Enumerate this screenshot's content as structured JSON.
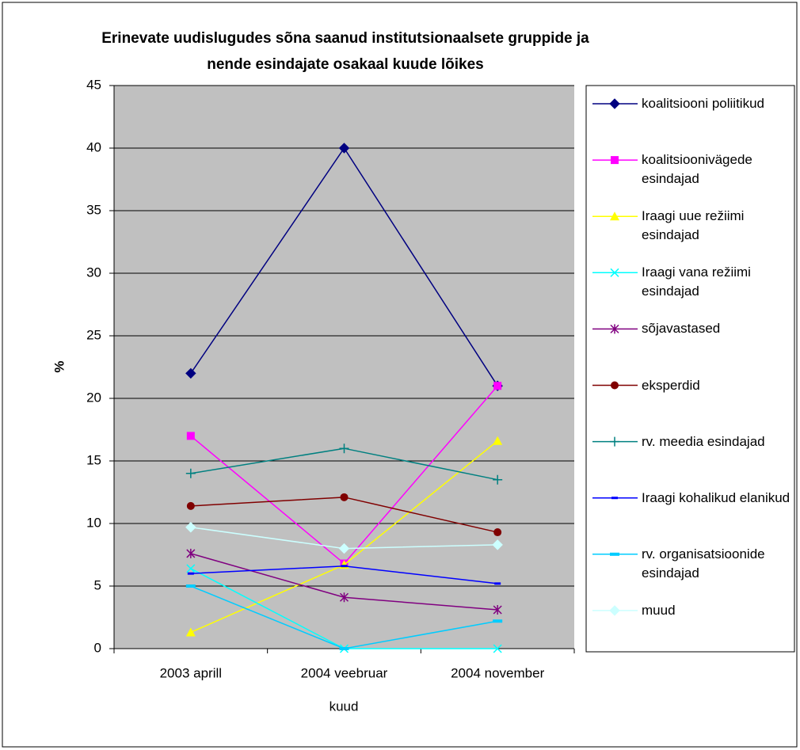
{
  "chart_data": {
    "type": "line",
    "title": "Erinevate uudislugudes sõna saanud institutsionaalsete gruppide ja nende esindajate osakaal kuude lõikes",
    "xlabel": "kuud",
    "ylabel": "%",
    "categories": [
      "2003 aprill",
      "2004 veebruar",
      "2004 november"
    ],
    "ylim": [
      0,
      45
    ],
    "yticks": [
      0,
      5,
      10,
      15,
      20,
      25,
      30,
      35,
      40,
      45
    ],
    "grid": true,
    "legend": "right",
    "series": [
      {
        "name": "koalitsiooni poliitikud",
        "color": "#000080",
        "marker": "diamond",
        "values": [
          22,
          40,
          21
        ]
      },
      {
        "name": "koalitsioonivägede esindajad",
        "color": "#ff00ff",
        "marker": "square",
        "values": [
          17,
          6.8,
          21
        ]
      },
      {
        "name": "Iraagi uue režiimi esindajad",
        "color": "#ffff00",
        "marker": "triangle",
        "values": [
          1.3,
          6.7,
          16.6
        ]
      },
      {
        "name": "Iraagi vana režiimi esindajad",
        "color": "#00ffff",
        "marker": "x",
        "values": [
          6.4,
          0,
          0
        ]
      },
      {
        "name": "sõjavastased",
        "color": "#800080",
        "marker": "star",
        "values": [
          7.6,
          4.1,
          3.1
        ]
      },
      {
        "name": "eksperdid",
        "color": "#800000",
        "marker": "circle",
        "values": [
          11.4,
          12.1,
          9.3
        ]
      },
      {
        "name": "rv. meedia esindajad",
        "color": "#008080",
        "marker": "plus",
        "values": [
          14,
          16,
          13.5
        ]
      },
      {
        "name": "Iraagi kohalikud elanikud",
        "color": "#0000ff",
        "marker": "dash",
        "values": [
          6,
          6.6,
          5.2
        ]
      },
      {
        "name": "rv. organisatsioonide esindajad",
        "color": "#00ccff",
        "marker": "bar",
        "values": [
          5,
          0,
          2.2
        ]
      },
      {
        "name": "muud",
        "color": "#ccffff",
        "marker": "diamond",
        "values": [
          9.7,
          8,
          8.3
        ]
      }
    ]
  }
}
